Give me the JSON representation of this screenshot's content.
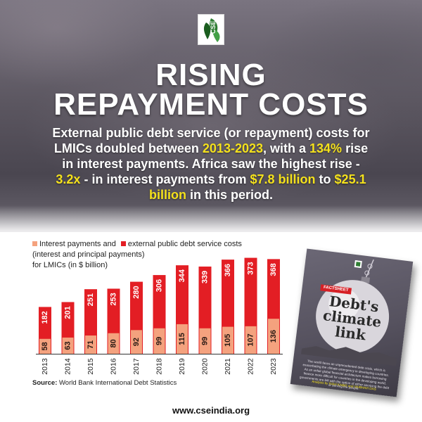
{
  "logo": {
    "text": "CSE"
  },
  "header": {
    "title_line1": "RISING",
    "title_line2": "REPAYMENT COSTS"
  },
  "subtitle": {
    "p1": "External public debt service (or repayment) costs for LMICs doubled between ",
    "h1": "2013-2023",
    "p2": ", with a ",
    "h2": "134%",
    "p3": " rise in interest payments. Africa saw the highest rise - ",
    "h3": "3.2x",
    "p4": " - in interest payments from ",
    "h4": "$7.8 billion",
    "p5": " to ",
    "h5": "$25.1 billion",
    "p6": " in this period."
  },
  "legend": {
    "item1": "Interest payments and",
    "item2": "external public debt service costs",
    "line2": "(interest and principal payments)",
    "line3": "for LMICs (in $ billion)"
  },
  "chart_data": {
    "type": "bar",
    "categories": [
      "2013",
      "2014",
      "2015",
      "2016",
      "2017",
      "2018",
      "2019",
      "2020",
      "2021",
      "2022",
      "2023"
    ],
    "series": [
      {
        "name": "Interest payments",
        "values": [
          58,
          63,
          71,
          80,
          92,
          99,
          115,
          99,
          105,
          107,
          136
        ]
      },
      {
        "name": "external public debt service costs",
        "values": [
          182,
          201,
          251,
          253,
          280,
          306,
          344,
          339,
          366,
          373,
          368
        ]
      }
    ],
    "ylim": [
      0,
      380
    ]
  },
  "colors": {
    "interest": "#f4a27e",
    "total": "#e31e24",
    "highlight": "#f4e11c"
  },
  "source": {
    "label": "Source:",
    "text": " World Bank International Debt Statistics"
  },
  "book": {
    "tag": "FACTSHEET",
    "title_l1": "Debt's",
    "title_l2": "climate",
    "title_l3": "link",
    "blurb": "The world faces an unprecedented debt crisis, which is exacerbating the climate emergency in developing countries. As an unfair global financial architecture makes borrowing finance more difficult for countries in the developing world, governments are left with the option of either servicing the debt or serving the people.",
    "authors": "Analysis by RAHI KABIR and VAIBHAVI DAS"
  },
  "footer": {
    "url": "www.cseindia.org"
  }
}
